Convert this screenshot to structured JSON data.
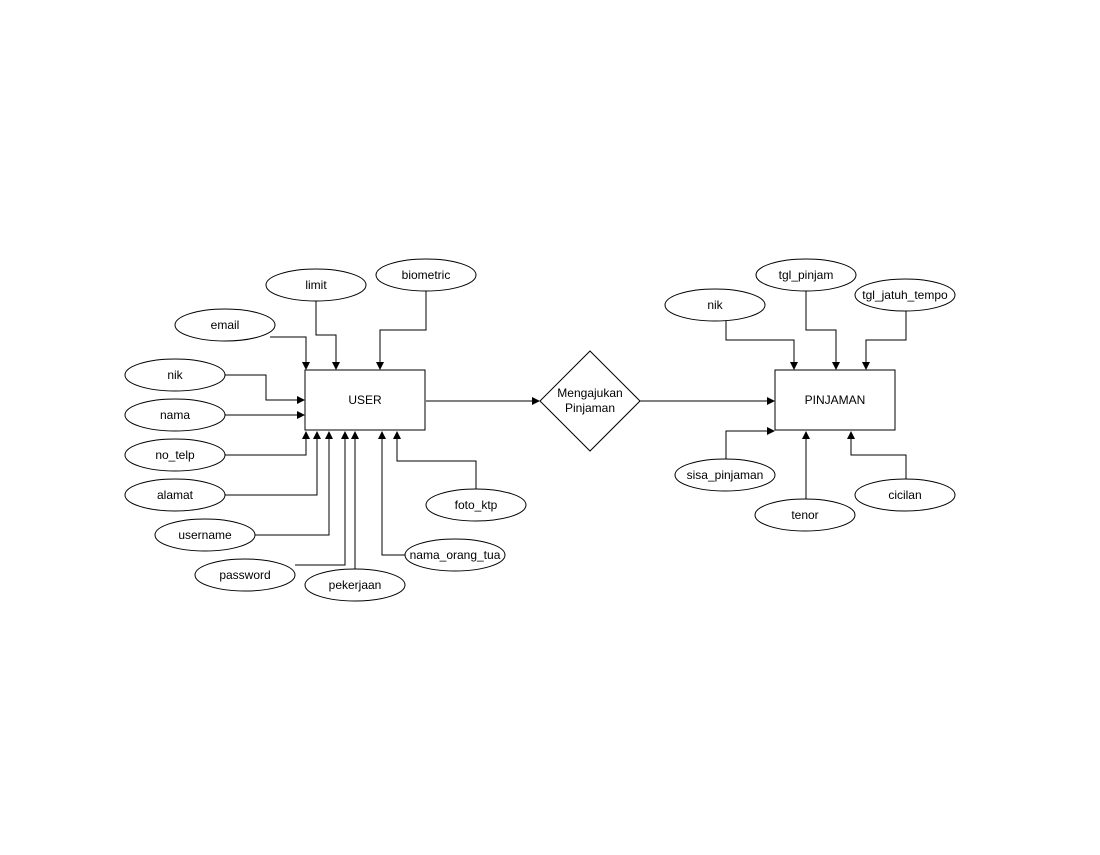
{
  "entities": {
    "user": "USER",
    "pinjaman": "PINJAMAN"
  },
  "relationship": {
    "line1": "Mengajukan",
    "line2": "Pinjaman"
  },
  "user_attributes": {
    "limit": "limit",
    "biometric": "biometric",
    "email": "email",
    "nik": "nik",
    "nama": "nama",
    "no_telp": "no_telp",
    "alamat": "alamat",
    "username": "username",
    "password": "password",
    "pekerjaan": "pekerjaan",
    "nama_orang_tua": "nama_orang_tua",
    "foto_ktp": "foto_ktp"
  },
  "pinjaman_attributes": {
    "nik": "nik",
    "tgl_pinjam": "tgl_pinjam",
    "tgl_jatuh_tempo": "tgl_jatuh_tempo",
    "sisa_pinjaman": "sisa_pinjaman",
    "tenor": "tenor",
    "cicilan": "cicilan"
  }
}
